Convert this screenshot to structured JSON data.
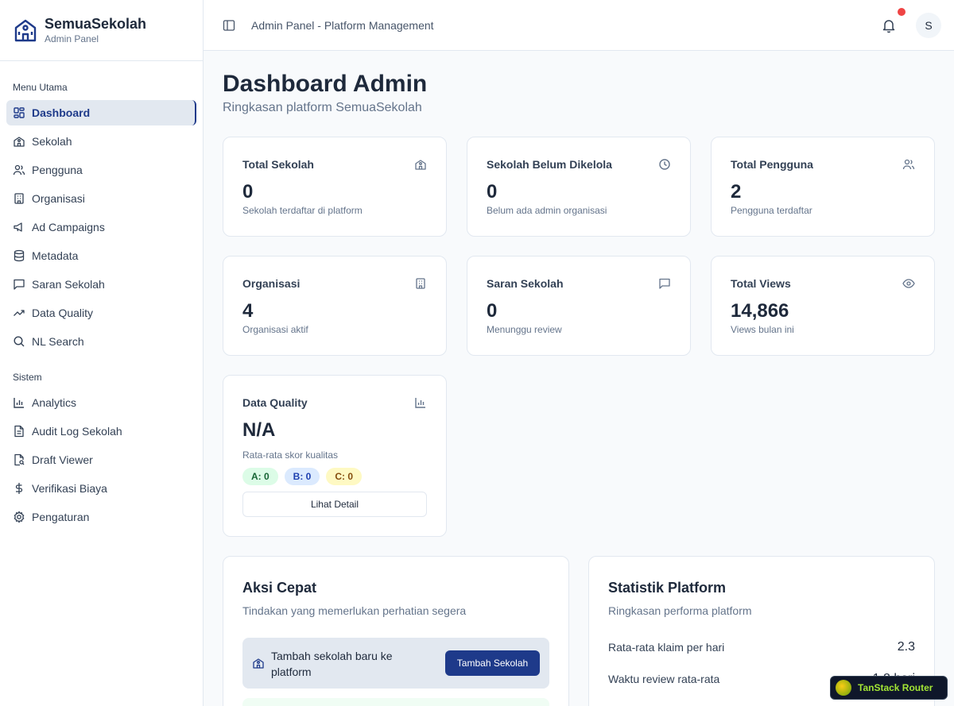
{
  "sidebar": {
    "brand_name": "SemuaSekolah",
    "brand_sub": "Admin Panel",
    "group_main": "Menu Utama",
    "main_items": [
      {
        "label": "Dashboard",
        "icon": "grid-icon"
      },
      {
        "label": "Sekolah",
        "icon": "school-icon"
      },
      {
        "label": "Pengguna",
        "icon": "users-icon"
      },
      {
        "label": "Organisasi",
        "icon": "building-icon"
      },
      {
        "label": "Ad Campaigns",
        "icon": "megaphone-icon"
      },
      {
        "label": "Metadata",
        "icon": "database-icon"
      },
      {
        "label": "Saran Sekolah",
        "icon": "message-icon"
      },
      {
        "label": "Data Quality",
        "icon": "trending-icon"
      },
      {
        "label": "NL Search",
        "icon": "search-icon"
      }
    ],
    "group_system": "Sistem",
    "system_items": [
      {
        "label": "Analytics",
        "icon": "bar-chart-icon"
      },
      {
        "label": "Audit Log Sekolah",
        "icon": "file-text-icon"
      },
      {
        "label": "Draft Viewer",
        "icon": "file-search-icon"
      },
      {
        "label": "Verifikasi Biaya",
        "icon": "dollar-icon"
      },
      {
        "label": "Pengaturan",
        "icon": "settings-icon"
      }
    ]
  },
  "header": {
    "title": "Admin Panel - Platform Management",
    "avatar_initial": "S"
  },
  "main": {
    "title": "Dashboard Admin",
    "subtitle": "Ringkasan platform SemuaSekolah"
  },
  "cards": [
    {
      "title": "Total Sekolah",
      "value": "0",
      "desc": "Sekolah terdaftar di platform",
      "icon": "school-icon"
    },
    {
      "title": "Sekolah Belum Dikelola",
      "value": "0",
      "desc": "Belum ada admin organisasi",
      "icon": "clock-icon"
    },
    {
      "title": "Total Pengguna",
      "value": "2",
      "desc": "Pengguna terdaftar",
      "icon": "users-icon"
    },
    {
      "title": "Organisasi",
      "value": "4",
      "desc": "Organisasi aktif",
      "icon": "building-icon"
    },
    {
      "title": "Saran Sekolah",
      "value": "0",
      "desc": "Menunggu review",
      "icon": "message-icon"
    },
    {
      "title": "Total Views",
      "value": "14,866",
      "desc": "Views bulan ini",
      "icon": "eye-icon"
    }
  ],
  "quality": {
    "title": "Data Quality",
    "value": "N/A",
    "desc": "Rata-rata skor kualitas",
    "badge_a": "A: 0",
    "badge_b": "B: 0",
    "badge_c": "C: 0",
    "detail_label": "Lihat Detail",
    "icon": "bar-chart-icon"
  },
  "quick_actions": {
    "title": "Aksi Cepat",
    "subtitle": "Tindakan yang memerlukan perhatian segera",
    "action_text": "Tambah sekolah baru ke platform",
    "action_button": "Tambah Sekolah"
  },
  "stats": {
    "title": "Statistik Platform",
    "subtitle": "Ringkasan performa platform",
    "rows": [
      {
        "label": "Rata-rata klaim per hari",
        "value": "2.3"
      },
      {
        "label": "Waktu review rata-rata",
        "value": "1.2 hari"
      }
    ]
  },
  "devtools": {
    "label": "TanStack Router"
  },
  "colors": {
    "primary": "#1e3a8a",
    "badge_dot": "#ef4444"
  }
}
